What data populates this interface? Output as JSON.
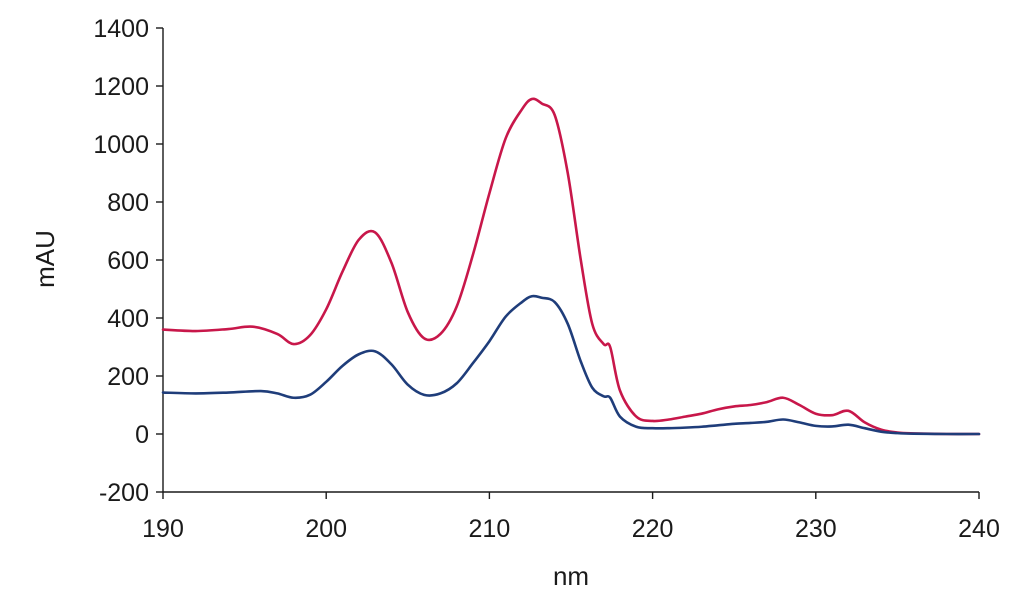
{
  "chart_data": {
    "type": "line",
    "title": "",
    "xlabel": "nm",
    "ylabel": "mAU",
    "xlim": [
      190,
      240
    ],
    "ylim": [
      -200,
      1400
    ],
    "x_ticks": [
      190,
      200,
      210,
      220,
      230,
      240
    ],
    "y_ticks": [
      -200,
      0,
      200,
      400,
      600,
      800,
      1000,
      1200,
      1400
    ],
    "grid": false,
    "legend": "none",
    "series": [
      {
        "color": "#c8174a",
        "x": [
          190,
          192,
          194,
          195.5,
          197,
          198,
          199,
          200,
          201,
          202,
          203,
          204,
          205,
          206,
          207,
          208,
          209,
          210,
          211,
          212,
          212.6,
          213.2,
          214,
          214.8,
          215.6,
          216.3,
          217,
          217.4,
          218,
          219,
          220,
          221,
          222,
          223,
          224,
          225,
          226,
          227,
          228,
          229,
          230,
          231,
          232,
          233,
          234,
          235,
          236,
          238,
          240
        ],
        "y": [
          360,
          355,
          362,
          370,
          345,
          310,
          340,
          430,
          560,
          670,
          695,
          590,
          420,
          330,
          345,
          440,
          620,
          830,
          1020,
          1120,
          1155,
          1140,
          1100,
          900,
          600,
          380,
          310,
          300,
          150,
          60,
          45,
          50,
          60,
          70,
          85,
          95,
          100,
          110,
          125,
          100,
          70,
          65,
          80,
          40,
          15,
          5,
          2,
          0,
          0
        ]
      },
      {
        "color": "#1f3d7a",
        "x": [
          190,
          192,
          194,
          196,
          197,
          198,
          199,
          200,
          201,
          202,
          203,
          204,
          205,
          206,
          207,
          208,
          209,
          210,
          211,
          212,
          212.6,
          213.2,
          214,
          214.8,
          215.6,
          216.3,
          217,
          217.4,
          218,
          219,
          220,
          221,
          222,
          223,
          224,
          225,
          226,
          227,
          228,
          229,
          230,
          231,
          232,
          233,
          234,
          235,
          236,
          238,
          240
        ],
        "y": [
          143,
          140,
          143,
          148,
          140,
          125,
          135,
          180,
          235,
          275,
          285,
          240,
          170,
          135,
          140,
          175,
          245,
          320,
          405,
          455,
          475,
          470,
          455,
          380,
          250,
          160,
          130,
          125,
          60,
          25,
          20,
          20,
          22,
          25,
          30,
          35,
          38,
          42,
          50,
          40,
          28,
          26,
          32,
          20,
          8,
          3,
          1,
          0,
          0
        ]
      }
    ]
  }
}
